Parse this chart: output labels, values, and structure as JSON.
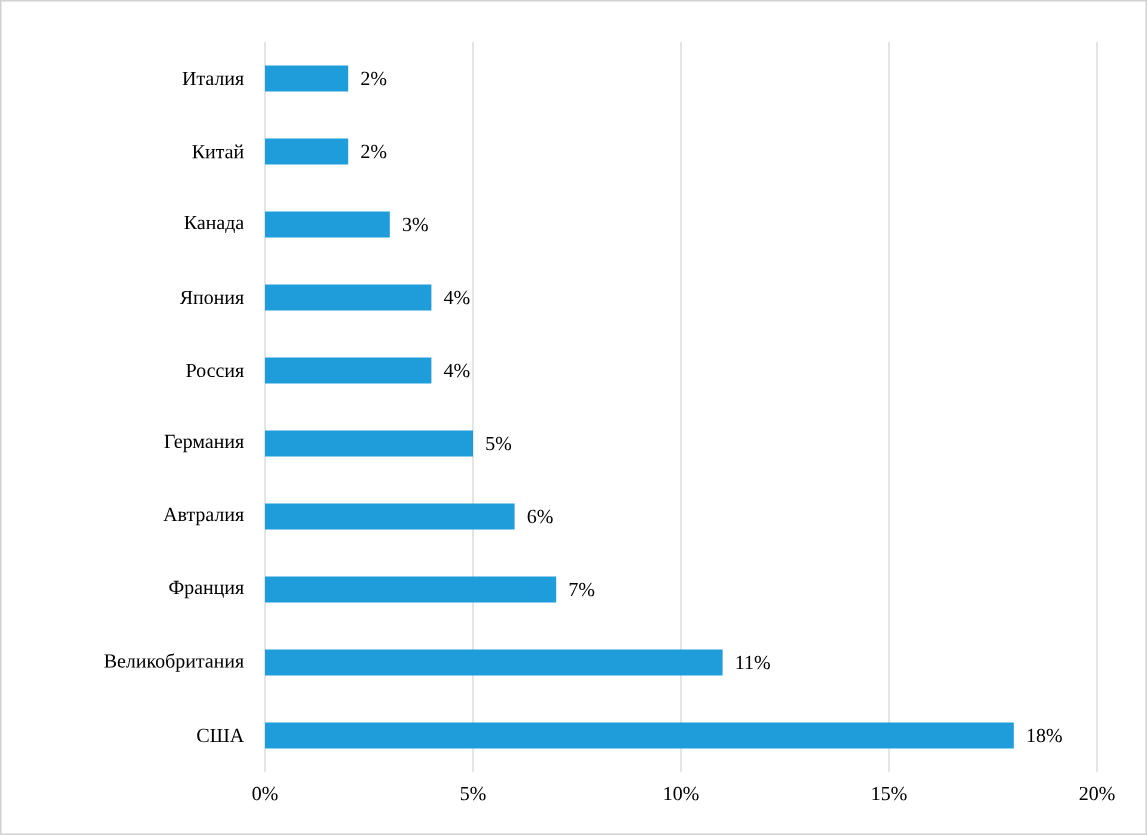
{
  "chart_data": {
    "type": "bar",
    "orientation": "horizontal",
    "categories": [
      "Италия",
      "Китай",
      "Канада",
      "Япония",
      "Россия",
      "Германия",
      "Автралия",
      "Франция",
      "Великобритания",
      "США"
    ],
    "values": [
      2,
      2,
      3,
      4,
      4,
      5,
      6,
      7,
      11,
      18
    ],
    "value_labels": [
      "2%",
      "2%",
      "3%",
      "4%",
      "4%",
      "5%",
      "6%",
      "7%",
      "11%",
      "18%"
    ],
    "color": "#1f9ddb",
    "xlim": [
      0,
      20
    ],
    "xticks": [
      {
        "value": 0,
        "label": "0%"
      },
      {
        "value": 5,
        "label": "5%"
      },
      {
        "value": 10,
        "label": "10%"
      },
      {
        "value": 15,
        "label": "15%"
      },
      {
        "value": 20,
        "label": "20%"
      }
    ],
    "grid": "x"
  }
}
